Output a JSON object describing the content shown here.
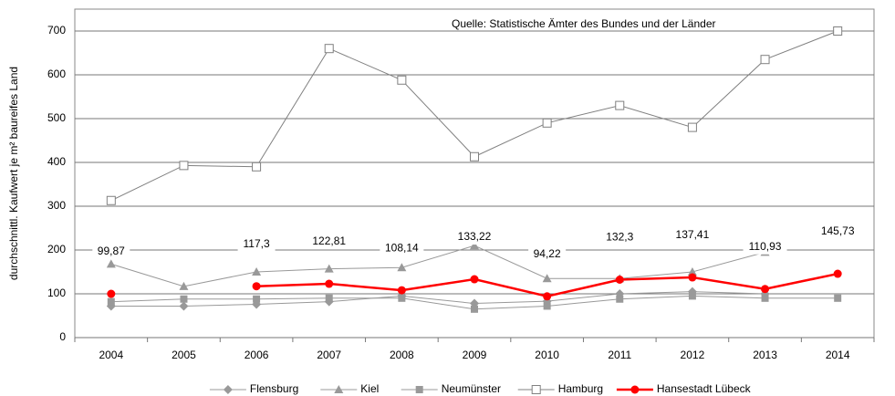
{
  "chart_data": {
    "type": "line",
    "annotation": "Quelle: Statistische Ämter des Bundes und der Länder",
    "y_label": "durchschnittl. Kaufwert je m² baureifes Land",
    "categories": [
      "2004",
      "2005",
      "2006",
      "2007",
      "2008",
      "2009",
      "2010",
      "2011",
      "2012",
      "2013",
      "2014"
    ],
    "ylim": [
      0,
      750
    ],
    "yticks": [
      0,
      100,
      200,
      300,
      400,
      500,
      600,
      700
    ],
    "grid": true,
    "legend": "bottom",
    "series": [
      {
        "name": "Flensburg",
        "color": "#999999",
        "marker": "diamond",
        "values": [
          72,
          72,
          76,
          82,
          95,
          78,
          83,
          100,
          105,
          100,
          null
        ]
      },
      {
        "name": "Kiel",
        "color": "#999999",
        "marker": "triangle",
        "values": [
          168,
          117,
          150,
          157,
          160,
          210,
          135,
          135,
          150,
          195,
          null
        ]
      },
      {
        "name": "Neumünster",
        "color": "#999999",
        "marker": "square",
        "values": [
          82,
          88,
          88,
          90,
          90,
          65,
          72,
          88,
          95,
          90,
          90
        ]
      },
      {
        "name": "Hamburg",
        "color": "#808080",
        "marker": "open-square",
        "values": [
          313,
          393,
          390,
          660,
          588,
          413,
          490,
          530,
          480,
          635,
          700
        ]
      },
      {
        "name": "Hansestadt Lübeck",
        "color": "#ff0000",
        "marker": "circle",
        "values": [
          99.87,
          null,
          117.3,
          122.81,
          108.14,
          133.22,
          94.22,
          132.3,
          137.41,
          110.93,
          145.73
        ],
        "value_labels": [
          "99,87",
          null,
          "117,3",
          "122,81",
          "108,14",
          "133,22",
          "94,22",
          "132,3",
          "137,41",
          "110,93",
          "145,73"
        ]
      }
    ]
  }
}
